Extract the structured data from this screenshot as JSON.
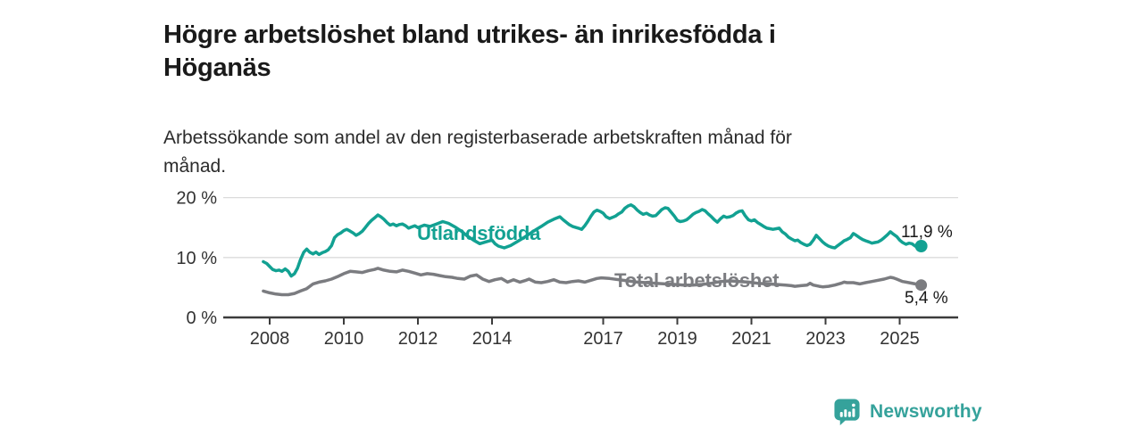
{
  "header": {
    "title": "Högre arbetslöshet bland utrikes- än inrikesfödda i\nHöganäs",
    "subtitle": "Arbetssökande som andel av den registerbaserade arbetskraften månad för\nmånad."
  },
  "chart_data": {
    "type": "line",
    "title": "Högre arbetslöshet bland utrikes- än inrikesfödda i Höganäs",
    "subtitle": "Arbetssökande som andel av den registerbaserade arbetskraften månad för månad.",
    "grid": "horizontal",
    "legend_position": "inline-labels-on-lines",
    "x_axis": {
      "ticks": [
        2008,
        2010,
        2012,
        2014,
        2017,
        2019,
        2021,
        2023,
        2025
      ],
      "range": [
        2007.7,
        2026.2
      ]
    },
    "y_axis": {
      "unit": "%",
      "range": [
        0,
        21
      ],
      "ticks": [
        {
          "value": 0,
          "label": "0 %"
        },
        {
          "value": 10,
          "label": "10 %"
        },
        {
          "value": 20,
          "label": "20 %"
        }
      ]
    },
    "series": [
      {
        "name": "Utlandsfödda",
        "color": "#12A192",
        "end_label": "11,9 %",
        "end_value": 11.9,
        "points": [
          [
            2007.83,
            9.3
          ],
          [
            2007.92,
            9.0
          ],
          [
            2008.0,
            8.5
          ],
          [
            2008.08,
            8.0
          ],
          [
            2008.17,
            7.8
          ],
          [
            2008.25,
            7.9
          ],
          [
            2008.33,
            7.7
          ],
          [
            2008.42,
            8.1
          ],
          [
            2008.5,
            7.7
          ],
          [
            2008.58,
            6.9
          ],
          [
            2008.67,
            7.3
          ],
          [
            2008.75,
            8.2
          ],
          [
            2008.83,
            9.6
          ],
          [
            2008.92,
            10.9
          ],
          [
            2009.0,
            11.4
          ],
          [
            2009.08,
            10.9
          ],
          [
            2009.17,
            10.6
          ],
          [
            2009.25,
            10.9
          ],
          [
            2009.33,
            10.5
          ],
          [
            2009.42,
            10.8
          ],
          [
            2009.5,
            11.0
          ],
          [
            2009.58,
            11.3
          ],
          [
            2009.67,
            12.0
          ],
          [
            2009.75,
            13.3
          ],
          [
            2009.83,
            13.8
          ],
          [
            2009.92,
            14.1
          ],
          [
            2010.0,
            14.5
          ],
          [
            2010.08,
            14.7
          ],
          [
            2010.17,
            14.4
          ],
          [
            2010.25,
            14.1
          ],
          [
            2010.33,
            13.7
          ],
          [
            2010.42,
            14.0
          ],
          [
            2010.5,
            14.4
          ],
          [
            2010.58,
            15.0
          ],
          [
            2010.67,
            15.7
          ],
          [
            2010.75,
            16.2
          ],
          [
            2010.83,
            16.6
          ],
          [
            2010.92,
            17.1
          ],
          [
            2011.0,
            16.8
          ],
          [
            2011.08,
            16.4
          ],
          [
            2011.17,
            15.8
          ],
          [
            2011.25,
            15.4
          ],
          [
            2011.33,
            15.6
          ],
          [
            2011.42,
            15.3
          ],
          [
            2011.5,
            15.5
          ],
          [
            2011.58,
            15.6
          ],
          [
            2011.67,
            15.3
          ],
          [
            2011.75,
            14.9
          ],
          [
            2011.83,
            15.1
          ],
          [
            2011.92,
            15.3
          ],
          [
            2012.0,
            15.0
          ],
          [
            2012.17,
            15.4
          ],
          [
            2012.33,
            15.2
          ],
          [
            2012.5,
            15.6
          ],
          [
            2012.67,
            16.0
          ],
          [
            2012.83,
            15.7
          ],
          [
            2013.0,
            15.1
          ],
          [
            2013.17,
            14.4
          ],
          [
            2013.33,
            13.6
          ],
          [
            2013.5,
            12.9
          ],
          [
            2013.67,
            12.3
          ],
          [
            2013.83,
            12.6
          ],
          [
            2014.0,
            12.9
          ],
          [
            2014.08,
            12.3
          ],
          [
            2014.17,
            11.9
          ],
          [
            2014.33,
            11.6
          ],
          [
            2014.5,
            12.0
          ],
          [
            2014.67,
            12.6
          ],
          [
            2014.83,
            13.2
          ],
          [
            2015.0,
            13.9
          ],
          [
            2015.17,
            14.6
          ],
          [
            2015.33,
            15.2
          ],
          [
            2015.5,
            15.9
          ],
          [
            2015.67,
            16.4
          ],
          [
            2015.83,
            16.8
          ],
          [
            2015.92,
            16.3
          ],
          [
            2016.08,
            15.5
          ],
          [
            2016.17,
            15.2
          ],
          [
            2016.33,
            14.9
          ],
          [
            2016.42,
            14.7
          ],
          [
            2016.5,
            15.3
          ],
          [
            2016.58,
            16.0
          ],
          [
            2016.67,
            16.9
          ],
          [
            2016.75,
            17.6
          ],
          [
            2016.83,
            17.9
          ],
          [
            2016.92,
            17.7
          ],
          [
            2017.0,
            17.4
          ],
          [
            2017.08,
            16.8
          ],
          [
            2017.17,
            16.5
          ],
          [
            2017.25,
            16.7
          ],
          [
            2017.33,
            16.9
          ],
          [
            2017.42,
            17.3
          ],
          [
            2017.5,
            17.6
          ],
          [
            2017.58,
            18.2
          ],
          [
            2017.67,
            18.6
          ],
          [
            2017.75,
            18.8
          ],
          [
            2017.83,
            18.5
          ],
          [
            2017.92,
            17.9
          ],
          [
            2018.0,
            17.5
          ],
          [
            2018.08,
            17.2
          ],
          [
            2018.17,
            17.4
          ],
          [
            2018.25,
            17.1
          ],
          [
            2018.33,
            16.9
          ],
          [
            2018.42,
            17.0
          ],
          [
            2018.5,
            17.5
          ],
          [
            2018.58,
            18.0
          ],
          [
            2018.67,
            18.3
          ],
          [
            2018.75,
            18.2
          ],
          [
            2018.83,
            17.6
          ],
          [
            2018.92,
            16.9
          ],
          [
            2019.0,
            16.2
          ],
          [
            2019.08,
            16.0
          ],
          [
            2019.17,
            16.1
          ],
          [
            2019.25,
            16.3
          ],
          [
            2019.33,
            16.7
          ],
          [
            2019.42,
            17.2
          ],
          [
            2019.5,
            17.5
          ],
          [
            2019.58,
            17.7
          ],
          [
            2019.67,
            18.0
          ],
          [
            2019.75,
            17.8
          ],
          [
            2019.83,
            17.3
          ],
          [
            2019.92,
            16.8
          ],
          [
            2020.0,
            16.3
          ],
          [
            2020.08,
            15.9
          ],
          [
            2020.17,
            16.5
          ],
          [
            2020.25,
            16.9
          ],
          [
            2020.33,
            16.7
          ],
          [
            2020.42,
            16.8
          ],
          [
            2020.5,
            17.0
          ],
          [
            2020.58,
            17.4
          ],
          [
            2020.67,
            17.7
          ],
          [
            2020.75,
            17.8
          ],
          [
            2020.83,
            17.0
          ],
          [
            2020.92,
            16.3
          ],
          [
            2021.0,
            16.1
          ],
          [
            2021.08,
            16.3
          ],
          [
            2021.17,
            15.8
          ],
          [
            2021.25,
            15.5
          ],
          [
            2021.33,
            15.2
          ],
          [
            2021.42,
            14.9
          ],
          [
            2021.5,
            14.8
          ],
          [
            2021.58,
            14.7
          ],
          [
            2021.67,
            14.8
          ],
          [
            2021.75,
            14.9
          ],
          [
            2021.83,
            14.3
          ],
          [
            2021.92,
            13.9
          ],
          [
            2022.0,
            13.4
          ],
          [
            2022.08,
            13.1
          ],
          [
            2022.17,
            12.8
          ],
          [
            2022.25,
            12.9
          ],
          [
            2022.33,
            12.5
          ],
          [
            2022.42,
            12.2
          ],
          [
            2022.5,
            12.0
          ],
          [
            2022.58,
            12.2
          ],
          [
            2022.67,
            12.9
          ],
          [
            2022.75,
            13.7
          ],
          [
            2022.83,
            13.2
          ],
          [
            2022.92,
            12.6
          ],
          [
            2023.0,
            12.2
          ],
          [
            2023.08,
            11.9
          ],
          [
            2023.17,
            11.7
          ],
          [
            2023.25,
            11.6
          ],
          [
            2023.33,
            12.0
          ],
          [
            2023.42,
            12.4
          ],
          [
            2023.5,
            12.8
          ],
          [
            2023.58,
            13.0
          ],
          [
            2023.67,
            13.3
          ],
          [
            2023.75,
            14.0
          ],
          [
            2023.83,
            13.7
          ],
          [
            2023.92,
            13.3
          ],
          [
            2024.0,
            13.0
          ],
          [
            2024.08,
            12.8
          ],
          [
            2024.17,
            12.6
          ],
          [
            2024.25,
            12.4
          ],
          [
            2024.33,
            12.5
          ],
          [
            2024.42,
            12.6
          ],
          [
            2024.5,
            12.9
          ],
          [
            2024.58,
            13.3
          ],
          [
            2024.67,
            13.8
          ],
          [
            2024.75,
            14.3
          ],
          [
            2024.83,
            13.9
          ],
          [
            2024.92,
            13.5
          ],
          [
            2025.0,
            12.9
          ],
          [
            2025.08,
            12.5
          ],
          [
            2025.17,
            12.2
          ],
          [
            2025.25,
            12.4
          ],
          [
            2025.33,
            12.3
          ],
          [
            2025.42,
            11.9
          ],
          [
            2025.5,
            11.8
          ],
          [
            2025.58,
            11.9
          ]
        ]
      },
      {
        "name": "Total arbetslöshet",
        "color": "#7B7C80",
        "end_label": "5,4 %",
        "end_value": 5.4,
        "points": [
          [
            2007.83,
            4.4
          ],
          [
            2008.0,
            4.1
          ],
          [
            2008.17,
            3.9
          ],
          [
            2008.33,
            3.8
          ],
          [
            2008.5,
            3.8
          ],
          [
            2008.67,
            4.0
          ],
          [
            2008.83,
            4.4
          ],
          [
            2009.0,
            4.8
          ],
          [
            2009.17,
            5.6
          ],
          [
            2009.33,
            5.9
          ],
          [
            2009.5,
            6.1
          ],
          [
            2009.67,
            6.4
          ],
          [
            2009.83,
            6.8
          ],
          [
            2010.0,
            7.3
          ],
          [
            2010.17,
            7.7
          ],
          [
            2010.33,
            7.6
          ],
          [
            2010.5,
            7.5
          ],
          [
            2010.67,
            7.8
          ],
          [
            2010.83,
            8.0
          ],
          [
            2010.92,
            8.2
          ],
          [
            2011.08,
            7.9
          ],
          [
            2011.25,
            7.7
          ],
          [
            2011.42,
            7.6
          ],
          [
            2011.58,
            7.9
          ],
          [
            2011.75,
            7.7
          ],
          [
            2011.92,
            7.4
          ],
          [
            2012.08,
            7.1
          ],
          [
            2012.25,
            7.3
          ],
          [
            2012.42,
            7.2
          ],
          [
            2012.58,
            7.0
          ],
          [
            2012.75,
            6.8
          ],
          [
            2012.92,
            6.7
          ],
          [
            2013.08,
            6.5
          ],
          [
            2013.25,
            6.4
          ],
          [
            2013.42,
            6.9
          ],
          [
            2013.58,
            7.1
          ],
          [
            2013.75,
            6.4
          ],
          [
            2013.92,
            6.0
          ],
          [
            2014.08,
            6.3
          ],
          [
            2014.25,
            6.5
          ],
          [
            2014.42,
            5.9
          ],
          [
            2014.58,
            6.3
          ],
          [
            2014.75,
            5.9
          ],
          [
            2014.92,
            6.2
          ],
          [
            2015.0,
            6.4
          ],
          [
            2015.17,
            5.9
          ],
          [
            2015.33,
            5.8
          ],
          [
            2015.5,
            6.0
          ],
          [
            2015.67,
            6.3
          ],
          [
            2015.83,
            5.9
          ],
          [
            2016.0,
            5.8
          ],
          [
            2016.17,
            6.0
          ],
          [
            2016.33,
            6.1
          ],
          [
            2016.5,
            5.9
          ],
          [
            2016.67,
            6.2
          ],
          [
            2016.83,
            6.5
          ],
          [
            2016.95,
            6.6
          ],
          [
            2017.17,
            6.5
          ],
          [
            2017.42,
            6.3
          ],
          [
            2017.67,
            6.1
          ],
          [
            2017.92,
            5.9
          ],
          [
            2018.17,
            5.8
          ],
          [
            2018.42,
            5.7
          ],
          [
            2018.67,
            5.6
          ],
          [
            2018.92,
            5.5
          ],
          [
            2019.17,
            5.4
          ],
          [
            2019.42,
            5.4
          ],
          [
            2019.67,
            5.5
          ],
          [
            2019.92,
            5.7
          ],
          [
            2020.17,
            6.0
          ],
          [
            2020.42,
            6.1
          ],
          [
            2020.67,
            6.0
          ],
          [
            2020.92,
            5.9
          ],
          [
            2021.17,
            5.7
          ],
          [
            2021.42,
            5.6
          ],
          [
            2021.67,
            5.5
          ],
          [
            2021.92,
            5.4
          ],
          [
            2022.08,
            5.3
          ],
          [
            2022.17,
            5.2
          ],
          [
            2022.33,
            5.3
          ],
          [
            2022.5,
            5.4
          ],
          [
            2022.58,
            5.7
          ],
          [
            2022.67,
            5.4
          ],
          [
            2022.83,
            5.2
          ],
          [
            2022.92,
            5.1
          ],
          [
            2023.08,
            5.2
          ],
          [
            2023.25,
            5.4
          ],
          [
            2023.42,
            5.7
          ],
          [
            2023.5,
            5.9
          ],
          [
            2023.58,
            5.8
          ],
          [
            2023.75,
            5.8
          ],
          [
            2023.92,
            5.6
          ],
          [
            2024.08,
            5.8
          ],
          [
            2024.25,
            6.0
          ],
          [
            2024.42,
            6.2
          ],
          [
            2024.58,
            6.4
          ],
          [
            2024.75,
            6.7
          ],
          [
            2024.83,
            6.6
          ],
          [
            2024.92,
            6.4
          ],
          [
            2025.08,
            6.0
          ],
          [
            2025.25,
            5.8
          ],
          [
            2025.42,
            5.6
          ],
          [
            2025.58,
            5.4
          ]
        ]
      }
    ]
  },
  "footer": {
    "brand": "Newsworthy",
    "brand_color": "#35A29B"
  },
  "colors": {
    "background": "#FFFFFF",
    "gridline": "#DBDBDB",
    "axis": "#3C3C3C",
    "tick_text": "#333333",
    "title_text": "#1A1A1A"
  }
}
